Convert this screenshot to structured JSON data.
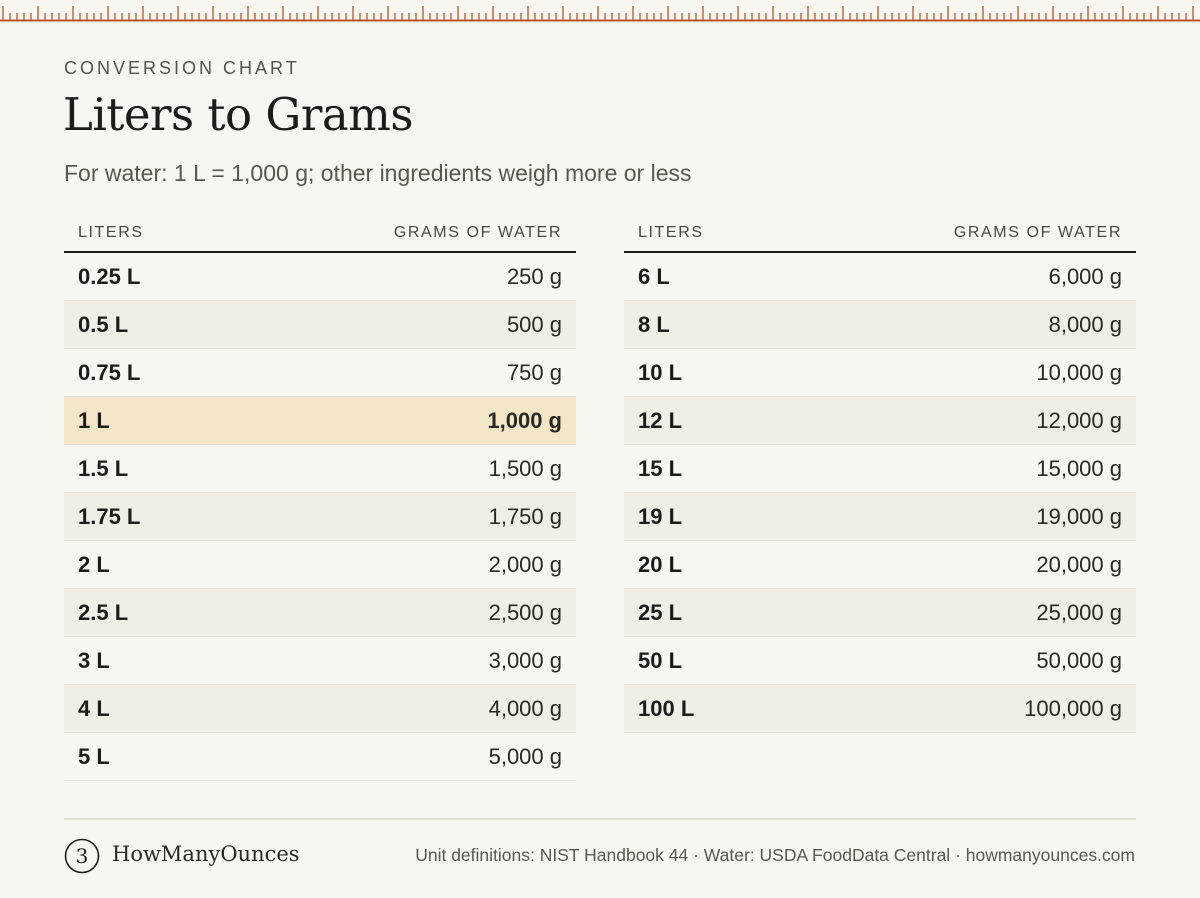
{
  "header": {
    "eyebrow": "CONVERSION CHART",
    "title": "Liters to Grams",
    "subtitle": "For water: 1 L = 1,000 g; other ingredients weigh more or less"
  },
  "table_left": {
    "columns": [
      "LITERS",
      "GRAMS OF WATER"
    ],
    "rows": [
      {
        "liters": "0.25 L",
        "grams": "250 g"
      },
      {
        "liters": "0.5 L",
        "grams": "500 g"
      },
      {
        "liters": "0.75 L",
        "grams": "750 g"
      },
      {
        "liters": "1 L",
        "grams": "1,000 g",
        "highlight": true
      },
      {
        "liters": "1.5 L",
        "grams": "1,500 g"
      },
      {
        "liters": "1.75 L",
        "grams": "1,750 g"
      },
      {
        "liters": "2 L",
        "grams": "2,000 g"
      },
      {
        "liters": "2.5 L",
        "grams": "2,500 g"
      },
      {
        "liters": "3 L",
        "grams": "3,000 g"
      },
      {
        "liters": "4 L",
        "grams": "4,000 g"
      },
      {
        "liters": "5 L",
        "grams": "5,000 g"
      }
    ]
  },
  "table_right": {
    "columns": [
      "LITERS",
      "GRAMS OF WATER"
    ],
    "rows": [
      {
        "liters": "6 L",
        "grams": "6,000 g"
      },
      {
        "liters": "8 L",
        "grams": "8,000 g"
      },
      {
        "liters": "10 L",
        "grams": "10,000 g"
      },
      {
        "liters": "12 L",
        "grams": "12,000 g"
      },
      {
        "liters": "15 L",
        "grams": "15,000 g"
      },
      {
        "liters": "19 L",
        "grams": "19,000 g"
      },
      {
        "liters": "20 L",
        "grams": "20,000 g"
      },
      {
        "liters": "25 L",
        "grams": "25,000 g"
      },
      {
        "liters": "50 L",
        "grams": "50,000 g"
      },
      {
        "liters": "100 L",
        "grams": "100,000 g"
      }
    ]
  },
  "footer": {
    "logo_glyph": "3",
    "brand": "HowManyOunces",
    "sources": "Unit definitions: NIST Handbook 44 · Water: USDA FoodData Central · howmanyounces.com"
  },
  "colors": {
    "background": "#f8f6f1",
    "ruler": "#b5552a",
    "highlight_row": "#f3e7c8",
    "alt_row": "#f1eee8",
    "text": "#1e1c19"
  },
  "icons": {
    "ruler": "ruler-ticks",
    "logo": "numeral-3-circle-logo"
  }
}
